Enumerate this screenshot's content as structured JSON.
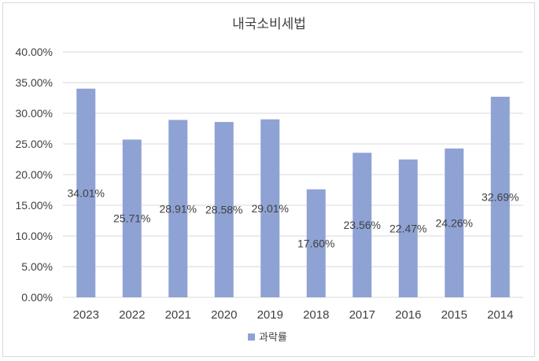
{
  "chart_data": {
    "type": "bar",
    "title": "내국소비세법",
    "categories": [
      "2023",
      "2022",
      "2021",
      "2020",
      "2019",
      "2018",
      "2017",
      "2016",
      "2015",
      "2014"
    ],
    "series": [
      {
        "name": "과락률",
        "values": [
          34.01,
          25.71,
          28.91,
          28.58,
          29.01,
          17.6,
          23.56,
          22.47,
          24.26,
          32.69
        ],
        "labels": [
          "34.01%",
          "25.71%",
          "28.91%",
          "28.58%",
          "29.01%",
          "17.60%",
          "23.56%",
          "22.47%",
          "24.26%",
          "32.69%"
        ],
        "color": "#8fa2d4"
      }
    ],
    "ylim": [
      0,
      40
    ],
    "yticks": [
      "0.00%",
      "5.00%",
      "10.00%",
      "15.00%",
      "20.00%",
      "25.00%",
      "30.00%",
      "35.00%",
      "40.00%"
    ],
    "grid": true,
    "legend": "bottom",
    "gridColor": "#d9d9d9",
    "textColor": "#404040"
  }
}
